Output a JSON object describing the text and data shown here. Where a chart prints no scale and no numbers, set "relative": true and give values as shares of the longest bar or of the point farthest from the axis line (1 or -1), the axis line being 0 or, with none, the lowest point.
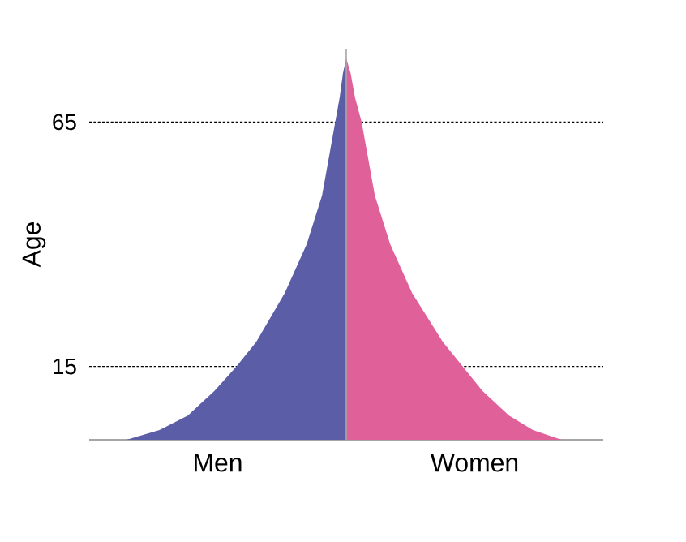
{
  "chart_data": {
    "type": "area",
    "orientation": "horizontal",
    "relative": true,
    "ylabel": "Age",
    "ylim": [
      0,
      80
    ],
    "yticks": [
      15,
      65
    ],
    "grid": "y",
    "series": [
      {
        "name": "Men",
        "color": "#5b5ea6",
        "x": [
          0,
          2,
          5,
          10,
          15,
          20,
          30,
          40,
          50,
          60,
          65,
          70,
          75,
          78
        ],
        "values": [
          -1.0,
          -0.85,
          -0.72,
          -0.6,
          -0.5,
          -0.41,
          -0.28,
          -0.18,
          -0.11,
          -0.07,
          -0.05,
          -0.03,
          -0.015,
          0
        ]
      },
      {
        "name": "Women",
        "color": "#e0609a",
        "x": [
          0,
          2,
          5,
          10,
          15,
          20,
          30,
          40,
          50,
          60,
          65,
          70,
          75,
          78
        ],
        "values": [
          0.98,
          0.85,
          0.74,
          0.62,
          0.53,
          0.44,
          0.3,
          0.2,
          0.13,
          0.09,
          0.07,
          0.04,
          0.02,
          0
        ]
      }
    ]
  }
}
